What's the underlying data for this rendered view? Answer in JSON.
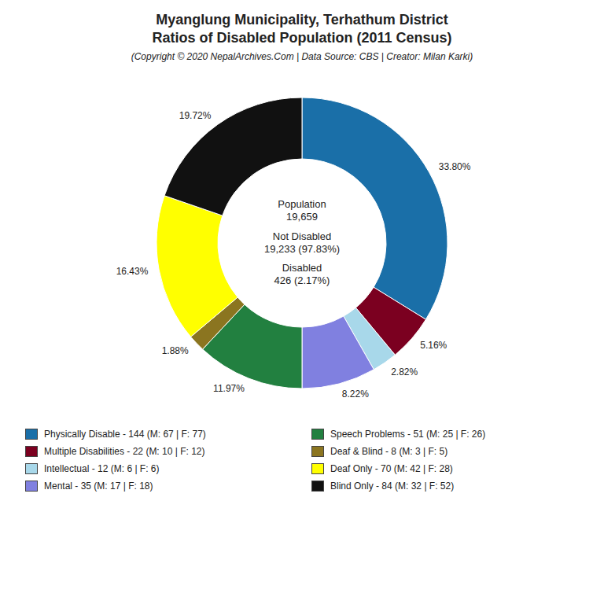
{
  "chart_data": {
    "type": "pie",
    "title": "Myanglung Municipality, Terhathum District\nRatios of Disabled Population (2011 Census)",
    "subtitle": "(Copyright © 2020 NepalArchives.Com | Data Source: CBS | Creator: Milan Karki)",
    "categories": [
      "Physically Disable - 144 (M: 67 | F: 77)",
      "Multiple Disabilities - 22 (M: 10 | F: 12)",
      "Intellectual - 12 (M: 6 | F: 6)",
      "Mental - 35 (M: 17 | F: 18)",
      "Speech Problems - 51 (M: 25 | F: 26)",
      "Deaf & Blind - 8 (M: 3 | F: 5)",
      "Deaf Only - 70 (M: 42 | F: 28)",
      "Blind Only - 84 (M: 32 | F: 52)"
    ],
    "values": [
      33.8,
      5.16,
      2.82,
      8.22,
      11.97,
      1.88,
      16.43,
      19.72
    ],
    "value_labels": [
      "33.80%",
      "5.16%",
      "2.82%",
      "8.22%",
      "11.97%",
      "1.88%",
      "16.43%",
      "19.72%"
    ],
    "colors": [
      "#1a6fa8",
      "#7b0020",
      "#a8d8ea",
      "#8080e0",
      "#228040",
      "#8b7520",
      "#ffff00",
      "#111111"
    ],
    "annotations": [
      "Population\n19,659",
      "Not Disabled\n19,233 (97.83%)",
      "Disabled\n426 (2.17%)"
    ],
    "data_labels": true,
    "legend": "bottom"
  }
}
